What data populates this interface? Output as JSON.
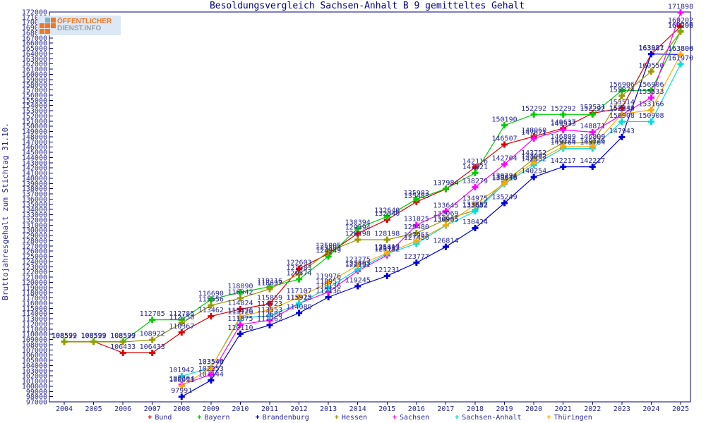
{
  "title": "Besoldungsvergleich Sachsen-Anhalt B 9 gemitteltes Gehalt",
  "logo": {
    "line1": "ÖFFENTLICHER",
    "line2": "DIENST.INFO"
  },
  "y_axis": {
    "label": "Bruttojahresgehalt zum Stichtag 31.10.",
    "min": 97000,
    "max": 172000,
    "step": 1000
  },
  "x_axis": {
    "years": [
      2004,
      2005,
      2006,
      2007,
      2008,
      2009,
      2010,
      2011,
      2012,
      2013,
      2014,
      2015,
      2016,
      2017,
      2018,
      2019,
      2020,
      2021,
      2022,
      2023,
      2024,
      2025
    ]
  },
  "colors": {
    "axis": "#000080",
    "text": "#2a2a9a"
  },
  "chart_data": {
    "type": "line",
    "title": "Besoldungsvergleich Sachsen-Anhalt B 9 gemitteltes Gehalt",
    "xlabel": "",
    "ylabel": "Bruttojahresgehalt zum Stichtag 31.10.",
    "ylim": [
      97000,
      172000
    ],
    "grid": false,
    "legend_position": "bottom",
    "x": [
      2004,
      2005,
      2006,
      2007,
      2008,
      2009,
      2010,
      2011,
      2012,
      2013,
      2014,
      2015,
      2016,
      2017,
      2018,
      2019,
      2020,
      2021,
      2022,
      2023,
      2024,
      2025
    ],
    "series": [
      {
        "name": "Bund",
        "color": "#dd0000",
        "values": [
          108599,
          108599,
          106433,
          106433,
          110367,
          113462,
          114824,
          115859,
          122603,
          125505,
          129394,
          132040,
          135483,
          137934,
          142116,
          146507,
          148060,
          149637,
          152531,
          153514,
          163887,
          169202
        ]
      },
      {
        "name": "Bayern",
        "color": "#00cc00",
        "values": [
          108599,
          108599,
          108599,
          112785,
          112785,
          116690,
          118090,
          119116,
          120574,
          124949,
          130394,
          132640,
          135983,
          137984,
          141021,
          150190,
          152292,
          152292,
          152292,
          156906,
          156906,
          168296
        ]
      },
      {
        "name": "Brandenburg",
        "color": "#0000dd",
        "values": [
          null,
          null,
          null,
          null,
          97991,
          101144,
          110110,
          111762,
          114089,
          117136,
          119245,
          121231,
          123777,
          126814,
          130424,
          135249,
          140254,
          142217,
          142217,
          147943,
          163931,
          163806
        ]
      },
      {
        "name": "Hessen",
        "color": "#999900",
        "values": [
          108522,
          108522,
          108522,
          108922,
          112150,
          115556,
          116942,
          118697,
          121583,
          125905,
          128198,
          128198,
          129480,
          132069,
          133852,
          139294,
          143752,
          146809,
          146809,
          155874,
          160550,
          168202
        ]
      },
      {
        "name": "Sachsen",
        "color": "#ff00ff",
        "values": [
          null,
          null,
          null,
          null,
          100304,
          102253,
          111875,
          112686,
          115915,
          118136,
          122191,
          125192,
          131025,
          133645,
          138279,
          142704,
          147671,
          149333,
          148871,
          152234,
          155533,
          171898
        ]
      },
      {
        "name": "Sachsen-Anhalt",
        "color": "#00dddd",
        "values": [
          null,
          null,
          null,
          null,
          101942,
          103546,
          113126,
          113553,
          115922,
          118957,
          122493,
          125492,
          127456,
          130905,
          133652,
          138916,
          142552,
          145764,
          145764,
          150908,
          150908,
          161970
        ]
      },
      {
        "name": "Thüringen",
        "color": "#ffaa00",
        "values": [
          null,
          null,
          null,
          null,
          100051,
          103540,
          113426,
          114723,
          117107,
          119976,
          123275,
          125617,
          127955,
          130965,
          134975,
          139046,
          143092,
          146126,
          146126,
          152349,
          153166,
          163800
        ]
      }
    ]
  },
  "legend_marker": "✚"
}
